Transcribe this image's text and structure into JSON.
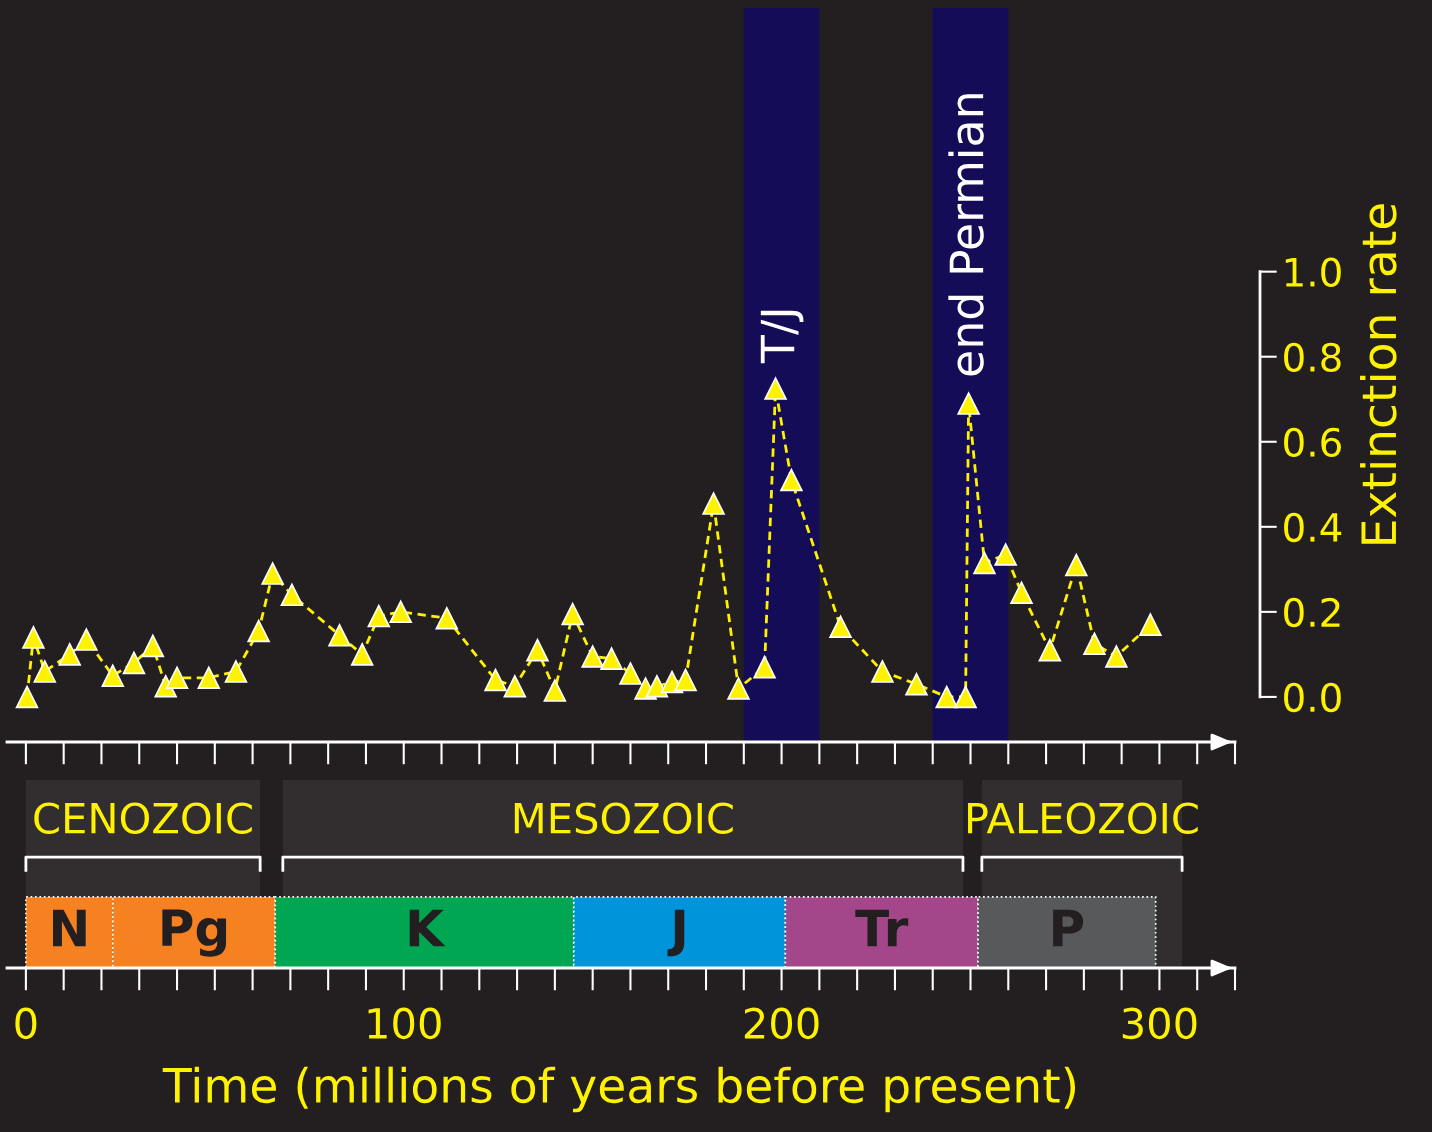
{
  "chart_data": [
    {
      "type": "line",
      "ylabel": "Extinction rate",
      "marker": "triangle",
      "line_style": "dashed",
      "grid": false,
      "legend": false,
      "tick_labels": "y",
      "xlim": [
        -5,
        320
      ],
      "ylim": [
        -0.106,
        1.62
      ],
      "yticks": [
        {
          "value": 0,
          "label": "0.0"
        },
        {
          "value": 0.2,
          "label": "0.2"
        },
        {
          "value": 0.4,
          "label": "0.4"
        },
        {
          "value": 0.6,
          "label": "0.6"
        },
        {
          "value": 0.8,
          "label": "0.8"
        },
        {
          "value": 1,
          "label": "1.0"
        }
      ],
      "bands": [
        {
          "axis": "x",
          "from": 190,
          "to": 210,
          "label": "T/J",
          "color": "#140c56"
        },
        {
          "axis": "x",
          "from": 240,
          "to": 260,
          "label": "end Permian",
          "color": "#140c56"
        }
      ],
      "series": [
        {
          "color": "#fff200",
          "x": [
            0.3,
            2,
            5,
            11.6,
            16,
            23,
            28.6,
            33.6,
            37,
            40,
            48.4,
            55.6,
            61.6,
            65.3,
            70.4,
            83,
            89,
            93.4,
            99.2,
            111.4,
            124.3,
            129.4,
            135.4,
            140,
            144.7,
            150,
            155,
            160,
            164,
            167,
            171,
            174.6,
            182,
            188.6,
            195.5,
            198.4,
            202.6,
            215.6,
            226.7,
            235.7,
            243.7,
            248.7,
            249.5,
            253.7,
            259.3,
            263.5,
            271,
            278,
            282.8,
            288.6,
            297.6
          ],
          "values": [
            0.0,
            0.14,
            0.06,
            0.1,
            0.135,
            0.05,
            0.08,
            0.12,
            0.025,
            0.045,
            0.045,
            0.06,
            0.155,
            0.29,
            0.24,
            0.145,
            0.1,
            0.19,
            0.2,
            0.185,
            0.04,
            0.025,
            0.11,
            0.015,
            0.195,
            0.095,
            0.09,
            0.055,
            0.02,
            0.025,
            0.035,
            0.04,
            0.455,
            0.02,
            0.07,
            0.725,
            0.51,
            0.165,
            0.06,
            0.03,
            0.0,
            0.0,
            0.69,
            0.315,
            0.335,
            0.245,
            0.11,
            0.31,
            0.125,
            0.095,
            0.17
          ]
        }
      ]
    },
    {
      "type": "bar",
      "orientation": "horizontal",
      "stacked": true,
      "xlabel": "Time (millions of years before present)",
      "tick_labels": "x",
      "categories": [
        null
      ],
      "xlim": [
        -5,
        320
      ],
      "xticks": [
        0,
        100,
        200,
        300
      ],
      "bands": [
        {
          "axis": "x",
          "from": 0,
          "to": 62,
          "label": "CENOZOIC"
        },
        {
          "axis": "x",
          "from": 68,
          "to": 248,
          "label": "MESOZOIC"
        },
        {
          "axis": "x",
          "from": 253,
          "to": 306,
          "label": "PALEOZOIC"
        }
      ],
      "annotations": [
        "N",
        "Pg",
        "K",
        "J",
        "Tr",
        "P"
      ],
      "series": [
        {
          "color": "#f68121",
          "values": [
            23
          ]
        },
        {
          "color": "#f68121",
          "values": [
            43
          ]
        },
        {
          "color": "#00a651",
          "values": [
            79
          ]
        },
        {
          "color": "#0095da",
          "values": [
            56
          ]
        },
        {
          "color": "#a3478a",
          "values": [
            51
          ]
        },
        {
          "color": "#58595b",
          "values": [
            47
          ]
        }
      ]
    }
  ]
}
